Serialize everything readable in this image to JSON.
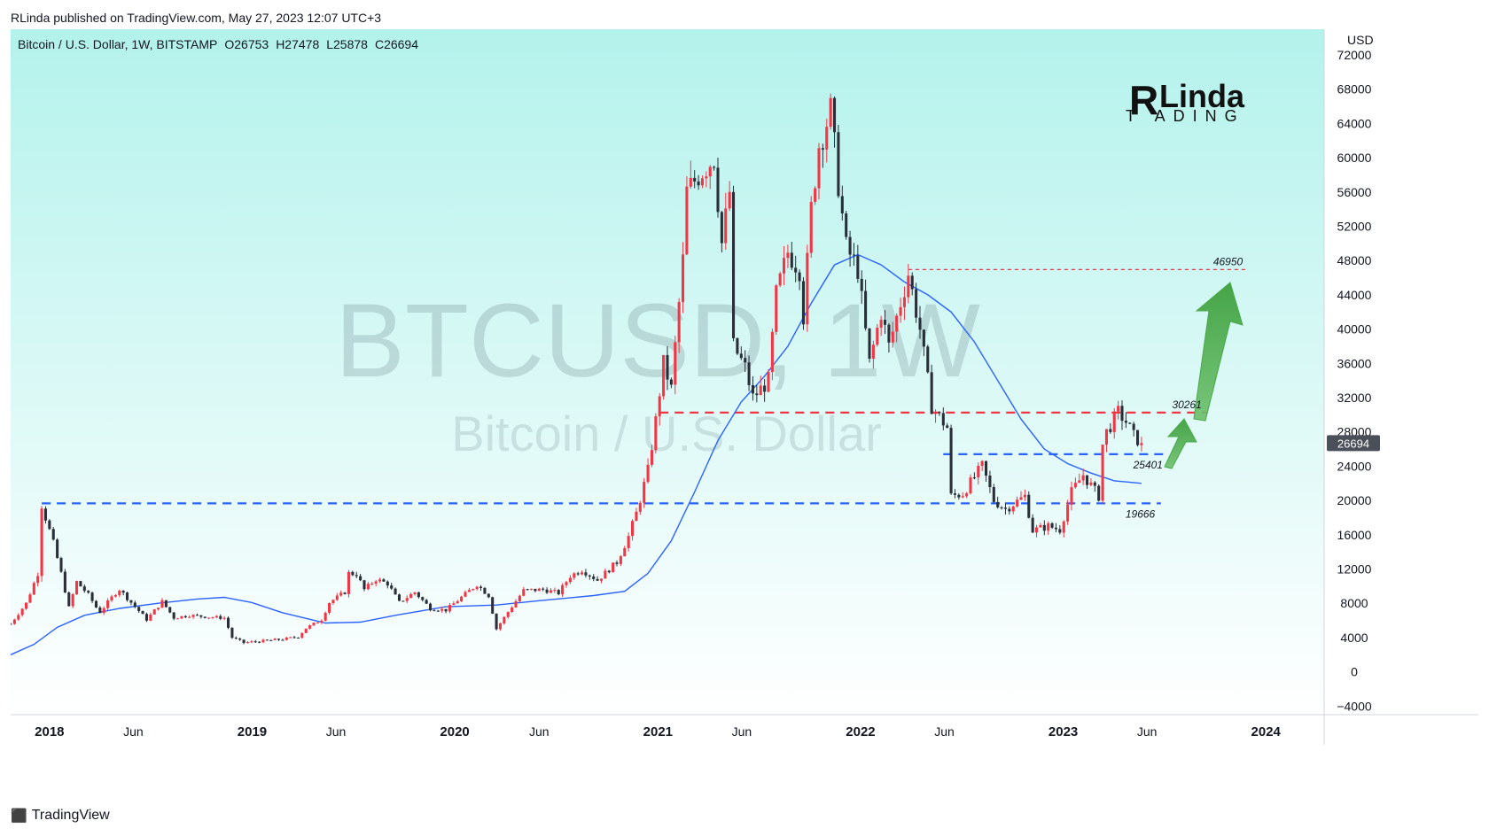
{
  "header": {
    "published_line": "RLinda published on TradingView.com, May 27, 2023 12:07 UTC+3"
  },
  "footer": {
    "brand": "TradingView"
  },
  "logo": {
    "text": "RLinda TRADING"
  },
  "watermark": {
    "symbol": "BTCUSD, 1W",
    "name": "Bitcoin / U.S. Dollar"
  },
  "colors": {
    "bull": "#f23645",
    "bear": "#2a2e39",
    "ma": "#2962ff",
    "support": "#2962ff",
    "resistance": "#f23645",
    "arrow": "#5fb85f",
    "bg_top": "#b4f2ec",
    "bg_bottom": "#ffffff"
  },
  "chart_data": {
    "type": "candlestick",
    "symbol_line": "Bitcoin / U.S. Dollar, 1W, BITSTAMP",
    "ohlc": {
      "O": "O26753",
      "H": "H27478",
      "L": "L25878",
      "C": "C26694"
    },
    "currency": "USD",
    "last_price": 26694,
    "ylim": [
      -5000,
      75000
    ],
    "y_ticks": [
      72000,
      68000,
      64000,
      60000,
      56000,
      52000,
      48000,
      44000,
      40000,
      36000,
      32000,
      28000,
      24000,
      20000,
      16000,
      12000,
      8000,
      4000,
      0,
      -4000
    ],
    "y_tick_labels": [
      "72000",
      "68000",
      "64000",
      "60000",
      "56000",
      "52000",
      "48000",
      "44000",
      "40000",
      "36000",
      "32000",
      "28000",
      "24000",
      "20000",
      "16000",
      "12000",
      "8000",
      "4000",
      "0",
      "−4000"
    ],
    "x_range": [
      "2017-10-23",
      "2024-04-15"
    ],
    "x_ticks": [
      {
        "date": "2018-01-01",
        "label": "2018",
        "bold": true
      },
      {
        "date": "2018-06-01",
        "label": "Jun",
        "bold": false
      },
      {
        "date": "2019-01-01",
        "label": "2019",
        "bold": true
      },
      {
        "date": "2019-06-01",
        "label": "Jun",
        "bold": false
      },
      {
        "date": "2020-01-01",
        "label": "2020",
        "bold": true
      },
      {
        "date": "2020-06-01",
        "label": "Jun",
        "bold": false
      },
      {
        "date": "2021-01-01",
        "label": "2021",
        "bold": true
      },
      {
        "date": "2021-06-01",
        "label": "Jun",
        "bold": false
      },
      {
        "date": "2022-01-01",
        "label": "2022",
        "bold": true
      },
      {
        "date": "2022-06-01",
        "label": "Jun",
        "bold": false
      },
      {
        "date": "2023-01-01",
        "label": "2023",
        "bold": true
      },
      {
        "date": "2023-06-01",
        "label": "Jun",
        "bold": false
      },
      {
        "date": "2024-01-01",
        "label": "2024",
        "bold": true
      }
    ],
    "price_path": [
      [
        "2017-10-23",
        5600
      ],
      [
        "2017-11-20",
        8000
      ],
      [
        "2017-12-11",
        11500
      ],
      [
        "2017-12-18",
        19500
      ],
      [
        "2018-01-08",
        15000
      ],
      [
        "2018-01-22",
        11500
      ],
      [
        "2018-02-05",
        7500
      ],
      [
        "2018-02-19",
        10500
      ],
      [
        "2018-03-12",
        9000
      ],
      [
        "2018-04-01",
        6900
      ],
      [
        "2018-05-06",
        9700
      ],
      [
        "2018-06-04",
        7600
      ],
      [
        "2018-06-25",
        6100
      ],
      [
        "2018-07-23",
        8200
      ],
      [
        "2018-08-13",
        6300
      ],
      [
        "2018-09-10",
        6600
      ],
      [
        "2018-10-15",
        6400
      ],
      [
        "2018-11-12",
        6300
      ],
      [
        "2018-11-26",
        4000
      ],
      [
        "2018-12-17",
        3400
      ],
      [
        "2019-01-21",
        3600
      ],
      [
        "2019-02-25",
        3800
      ],
      [
        "2019-03-25",
        4100
      ],
      [
        "2019-04-08",
        5100
      ],
      [
        "2019-05-06",
        6100
      ],
      [
        "2019-05-20",
        8100
      ],
      [
        "2019-06-17",
        9300
      ],
      [
        "2019-06-24",
        11500
      ],
      [
        "2019-07-08",
        11400
      ],
      [
        "2019-07-22",
        9600
      ],
      [
        "2019-08-12",
        10800
      ],
      [
        "2019-09-02",
        10300
      ],
      [
        "2019-09-23",
        8100
      ],
      [
        "2019-10-21",
        9300
      ],
      [
        "2019-11-18",
        7400
      ],
      [
        "2019-12-16",
        7200
      ],
      [
        "2020-01-13",
        8700
      ],
      [
        "2020-02-10",
        10200
      ],
      [
        "2020-03-02",
        8900
      ],
      [
        "2020-03-16",
        5000
      ],
      [
        "2020-04-06",
        7000
      ],
      [
        "2020-05-04",
        9500
      ],
      [
        "2020-06-08",
        9600
      ],
      [
        "2020-07-06",
        9200
      ],
      [
        "2020-07-27",
        11200
      ],
      [
        "2020-08-17",
        11900
      ],
      [
        "2020-09-14",
        10700
      ],
      [
        "2020-10-19",
        12800
      ],
      [
        "2020-11-09",
        15800
      ],
      [
        "2020-11-23",
        18500
      ],
      [
        "2020-12-14",
        23500
      ],
      [
        "2020-12-28",
        29300
      ],
      [
        "2021-01-11",
        36000
      ],
      [
        "2021-01-25",
        33000
      ],
      [
        "2021-02-15",
        48000
      ],
      [
        "2021-02-22",
        56000
      ],
      [
        "2021-03-15",
        58000
      ],
      [
        "2021-04-12",
        60000
      ],
      [
        "2021-04-26",
        50000
      ],
      [
        "2021-05-10",
        56000
      ],
      [
        "2021-05-17",
        38000
      ],
      [
        "2021-06-07",
        35500
      ],
      [
        "2021-06-21",
        32000
      ],
      [
        "2021-07-19",
        34000
      ],
      [
        "2021-08-02",
        44000
      ],
      [
        "2021-08-23",
        49000
      ],
      [
        "2021-09-13",
        47000
      ],
      [
        "2021-09-20",
        41500
      ],
      [
        "2021-10-04",
        54000
      ],
      [
        "2021-10-18",
        61500
      ],
      [
        "2021-11-08",
        65500
      ],
      [
        "2021-11-22",
        57000
      ],
      [
        "2021-12-06",
        49500
      ],
      [
        "2021-12-27",
        47000
      ],
      [
        "2022-01-17",
        36000
      ],
      [
        "2022-02-07",
        42000
      ],
      [
        "2022-02-21",
        38000
      ],
      [
        "2022-03-28",
        46500
      ],
      [
        "2022-04-18",
        40000
      ],
      [
        "2022-05-09",
        31000
      ],
      [
        "2022-06-06",
        28500
      ],
      [
        "2022-06-13",
        20500
      ],
      [
        "2022-07-04",
        20800
      ],
      [
        "2022-08-08",
        24000
      ],
      [
        "2022-08-29",
        20000
      ],
      [
        "2022-09-19",
        19000
      ],
      [
        "2022-10-24",
        20500
      ],
      [
        "2022-11-07",
        16500
      ],
      [
        "2022-12-05",
        17000
      ],
      [
        "2022-12-26",
        16600
      ],
      [
        "2023-01-16",
        21000
      ],
      [
        "2023-02-06",
        23000
      ],
      [
        "2023-03-06",
        20500
      ],
      [
        "2023-03-13",
        26500
      ],
      [
        "2023-03-20",
        28000
      ],
      [
        "2023-04-10",
        30300
      ],
      [
        "2023-04-24",
        29200
      ],
      [
        "2023-05-08",
        27500
      ],
      [
        "2023-05-22",
        26700
      ]
    ],
    "moving_average": [
      [
        "2017-10-23",
        2000
      ],
      [
        "2017-12-04",
        3200
      ],
      [
        "2018-01-15",
        5200
      ],
      [
        "2018-03-05",
        6600
      ],
      [
        "2018-05-07",
        7400
      ],
      [
        "2018-07-16",
        8000
      ],
      [
        "2018-09-24",
        8500
      ],
      [
        "2018-11-12",
        8700
      ],
      [
        "2018-12-31",
        8100
      ],
      [
        "2019-02-25",
        6900
      ],
      [
        "2019-05-13",
        5700
      ],
      [
        "2019-07-15",
        5800
      ],
      [
        "2019-09-16",
        6600
      ],
      [
        "2019-12-16",
        7600
      ],
      [
        "2020-03-16",
        7800
      ],
      [
        "2020-06-01",
        8300
      ],
      [
        "2020-09-07",
        8900
      ],
      [
        "2020-11-02",
        9400
      ],
      [
        "2020-12-14",
        11500
      ],
      [
        "2021-01-25",
        15300
      ],
      [
        "2021-03-08",
        21000
      ],
      [
        "2021-04-19",
        27000
      ],
      [
        "2021-05-31",
        31500
      ],
      [
        "2021-07-12",
        34500
      ],
      [
        "2021-08-23",
        38000
      ],
      [
        "2021-10-04",
        43000
      ],
      [
        "2021-11-15",
        47500
      ],
      [
        "2021-12-27",
        48700
      ],
      [
        "2022-02-07",
        47500
      ],
      [
        "2022-03-21",
        45500
      ],
      [
        "2022-05-02",
        44000
      ],
      [
        "2022-06-13",
        42000
      ],
      [
        "2022-07-25",
        38500
      ],
      [
        "2022-09-05",
        34000
      ],
      [
        "2022-10-17",
        29500
      ],
      [
        "2022-11-28",
        26000
      ],
      [
        "2023-01-09",
        24300
      ],
      [
        "2023-02-20",
        23200
      ],
      [
        "2023-04-03",
        22300
      ],
      [
        "2023-05-22",
        22000
      ]
    ],
    "levels": [
      {
        "value": 46950,
        "label": "46950",
        "color": "resistance",
        "style": "dotted",
        "from": "2022-03-28",
        "to": "2023-12-01"
      },
      {
        "value": 30261,
        "label": "30261",
        "color": "resistance",
        "style": "dashed",
        "from": "2021-01-04",
        "to": "2023-09-18"
      },
      {
        "value": 25401,
        "label": "25401",
        "color": "support",
        "style": "dashed",
        "from": "2022-05-30",
        "to": "2023-07-10"
      },
      {
        "value": 19666,
        "label": "19666",
        "color": "support",
        "style": "dashed",
        "from": "2017-12-18",
        "to": "2023-06-26"
      }
    ],
    "grid": false,
    "legend": "none"
  }
}
